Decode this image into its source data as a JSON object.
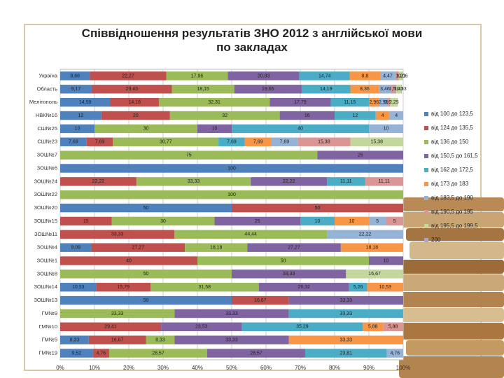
{
  "chart_data": {
    "type": "stacked-barh",
    "title": "Співвідношення результатів ЗНО 2012 з англійської мови по закладах",
    "categories": [
      "Україна",
      "Область",
      "Мелітополь",
      "НВК№16",
      "СШ№25",
      "СШ№23",
      "ЗОШ№7",
      "ЗОШ№6",
      "ЗОШ№24",
      "ЗОШ№22",
      "ЗОШ№20",
      "ЗОШ№15",
      "ЗОШ№11",
      "ЗОШ№4",
      "ЗОШ№1",
      "ЗОШ№8",
      "ЗОШ№14",
      "ЗОШ№13",
      "ГМ№9",
      "ГМ№10",
      "ГМ№5",
      "ГМ№19"
    ],
    "series": [
      {
        "name": "від 100 до 123,5",
        "color": "#4f81bd",
        "values": [
          8.66,
          9.17,
          14.59,
          12,
          10,
          7.69,
          0,
          100,
          0,
          0,
          50,
          0,
          0,
          9.09,
          0,
          0,
          10.53,
          50,
          0,
          0,
          8.33,
          9.52
        ],
        "value_labels": [
          "8,66",
          "9,17",
          "14,59",
          "12",
          "10",
          "7,69",
          null,
          "100",
          null,
          null,
          "50",
          null,
          null,
          "9,09",
          null,
          null,
          "10,53",
          "50",
          null,
          null,
          "8,33",
          "9,52"
        ]
      },
      {
        "name": "від 124 до 135,5",
        "color": "#c0504d",
        "values": [
          22.27,
          23.43,
          14.18,
          20,
          0,
          7.69,
          0,
          0,
          22.22,
          0,
          50,
          15,
          33.33,
          27.27,
          40,
          0,
          15.79,
          16.67,
          0,
          29.41,
          16.67,
          4.76
        ],
        "value_labels": [
          "22,27",
          "23,43",
          "14,18",
          "20",
          null,
          "7,69",
          null,
          null,
          "22,22",
          null,
          "50",
          "15",
          "33,33",
          "27,27",
          "40",
          null,
          "15,79",
          "16,67",
          null,
          "29,41",
          "16,67",
          "4,76"
        ]
      },
      {
        "name": "від 136 до 150",
        "color": "#9bbb59",
        "values": [
          17.96,
          18.15,
          32.31,
          32,
          30,
          30.77,
          75,
          0,
          33.33,
          100,
          0,
          30,
          44.44,
          18.18,
          50,
          50,
          31.58,
          0,
          33.33,
          0,
          8.33,
          28.57
        ],
        "value_labels": [
          "17,96",
          "18,15",
          "32,31",
          "32",
          "30",
          "30,77",
          "75",
          null,
          "33,33",
          "100",
          null,
          "30",
          "44,44",
          "18,18",
          "50",
          "50",
          "31,58",
          null,
          "33,33",
          null,
          "8,33",
          "28,57"
        ]
      },
      {
        "name": "від 150,5 до 161,5",
        "color": "#8064a2",
        "values": [
          20.83,
          19.65,
          17.79,
          16,
          10,
          0,
          25,
          0,
          22.22,
          0,
          0,
          25,
          0,
          27.27,
          10,
          33.33,
          26.32,
          33.33,
          33.33,
          23.53,
          33.33,
          28.57
        ],
        "value_labels": [
          "20,83",
          "19,65",
          "17,79",
          "16",
          "10",
          null,
          "25",
          null,
          "22,22",
          null,
          null,
          "25",
          null,
          "27,27",
          "10",
          "33,33",
          "26,32",
          "33,33",
          "33,33",
          "23,53",
          "33,33",
          "28,57"
        ]
      },
      {
        "name": "від 162 до 172,5",
        "color": "#4bacc6",
        "values": [
          14.74,
          14.19,
          11.15,
          12,
          40,
          7.69,
          0,
          0,
          11.11,
          0,
          0,
          10,
          0,
          0,
          0,
          0,
          5.26,
          0,
          33.33,
          35.29,
          0,
          23.81
        ],
        "value_labels": [
          "14,74",
          "14,19",
          "11,15",
          "12",
          "40",
          "7,69",
          null,
          null,
          "11,11",
          null,
          null,
          "10",
          null,
          null,
          null,
          null,
          "5,26",
          null,
          "33,33",
          "35,29",
          null,
          "23,81"
        ]
      },
      {
        "name": "від 173 до 183",
        "color": "#f79646",
        "values": [
          8.8,
          8.36,
          2.96,
          4,
          0,
          7.69,
          0,
          0,
          0,
          0,
          0,
          10,
          0,
          18.18,
          0,
          0,
          10.53,
          0,
          0,
          5.88,
          33.33,
          0
        ],
        "value_labels": [
          "8,8",
          "8,36",
          "2,96",
          "4",
          null,
          "7,69",
          null,
          null,
          null,
          null,
          null,
          "10",
          null,
          "18,18",
          null,
          null,
          "10,53",
          null,
          null,
          "5,88",
          "33,33",
          null
        ]
      },
      {
        "name": "від 183,5 до 190",
        "color": "#95b3d7",
        "values": [
          4.47,
          3.46,
          2.56,
          4,
          10,
          7.69,
          0,
          0,
          0,
          0,
          0,
          5,
          22.22,
          0,
          0,
          0,
          0,
          0,
          0,
          0,
          0,
          4.76
        ],
        "value_labels": [
          "4,47",
          "3,46",
          "2,56",
          "4",
          "10",
          "7,69",
          null,
          null,
          null,
          null,
          null,
          "5",
          "22,22",
          null,
          null,
          null,
          null,
          null,
          null,
          null,
          null,
          "4,76"
        ]
      },
      {
        "name": "від 190,5 до 195",
        "color": "#d99694",
        "values": [
          1.0,
          1.59,
          0.66,
          0,
          0,
          15.38,
          0,
          0,
          11.11,
          0,
          0,
          5,
          0,
          0,
          0,
          0,
          0,
          0,
          0,
          5.88,
          0,
          0
        ],
        "value_labels": [
          "1",
          "1,59",
          "0,66",
          null,
          null,
          "15,38",
          null,
          null,
          "11,11",
          null,
          null,
          "5",
          null,
          null,
          null,
          null,
          null,
          null,
          null,
          "5,88",
          null,
          null
        ]
      },
      {
        "name": "від 195,5 до 199,5",
        "color": "#c3d69b",
        "values": [
          1.21,
          1.49,
          2.25,
          0,
          0,
          15.38,
          0,
          0,
          0,
          0,
          0,
          0,
          0,
          0,
          0,
          16.67,
          0,
          0,
          0,
          0,
          0,
          0
        ],
        "value_labels": [
          "1,21",
          "1,49",
          "2,25",
          null,
          null,
          "15,38",
          null,
          null,
          null,
          null,
          null,
          null,
          null,
          null,
          null,
          "16,67",
          null,
          null,
          null,
          null,
          null,
          null
        ]
      },
      {
        "name": "200",
        "color": "#b3a2c7",
        "values": [
          0.06,
          0.13,
          0,
          0,
          0,
          0,
          0,
          0,
          0,
          0,
          0,
          0,
          0,
          0,
          0,
          0,
          0,
          0,
          0,
          0,
          0,
          0
        ],
        "value_labels": [
          "0,06",
          "0,13",
          null,
          null,
          null,
          null,
          null,
          null,
          null,
          null,
          null,
          null,
          null,
          null,
          null,
          null,
          null,
          null,
          null,
          null,
          null,
          null
        ]
      }
    ],
    "xlim": [
      0,
      100
    ],
    "xticks": [
      {
        "value": 0,
        "label": "0%"
      },
      {
        "value": 10,
        "label": "10%"
      },
      {
        "value": 20,
        "label": "20%"
      },
      {
        "value": 30,
        "label": "30%"
      },
      {
        "value": 40,
        "label": "40%"
      },
      {
        "value": 50,
        "label": "50%"
      },
      {
        "value": 60,
        "label": "60%"
      },
      {
        "value": 70,
        "label": "70%"
      },
      {
        "value": 80,
        "label": "80%"
      },
      {
        "value": 90,
        "label": "90%"
      },
      {
        "value": 100,
        "label": "100%"
      }
    ],
    "grid": true
  }
}
